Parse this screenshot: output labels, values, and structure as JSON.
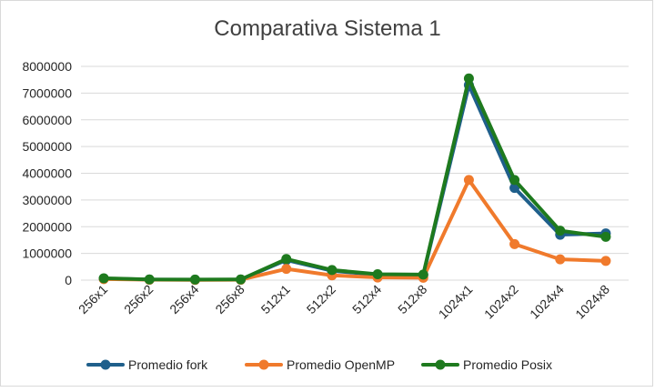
{
  "chart_data": {
    "type": "line",
    "title": "Comparativa Sistema 1",
    "xlabel": "",
    "ylabel": "",
    "ylim": [
      0,
      8000000
    ],
    "yticks": [
      "0",
      "1000000",
      "2000000",
      "3000000",
      "4000000",
      "5000000",
      "6000000",
      "7000000",
      "8000000"
    ],
    "grid": true,
    "legend": "bottom",
    "categories": [
      "256x1",
      "256x2",
      "256x4",
      "256x8",
      "512x1",
      "512x2",
      "512x4",
      "512x8",
      "1024x1",
      "1024x2",
      "1024x4",
      "1024x8"
    ],
    "series": [
      {
        "name": "Promedio fork",
        "color": "#1f5f8b",
        "values": [
          60000,
          20000,
          15000,
          20000,
          750000,
          350000,
          200000,
          190000,
          7300000,
          3450000,
          1700000,
          1750000
        ]
      },
      {
        "name": "Promedio OpenMP",
        "color": "#f07a2c",
        "values": [
          40000,
          15000,
          10000,
          15000,
          420000,
          180000,
          100000,
          90000,
          3750000,
          1350000,
          780000,
          720000
        ]
      },
      {
        "name": "Promedio Posix",
        "color": "#1e7a1e",
        "values": [
          70000,
          25000,
          20000,
          25000,
          790000,
          380000,
          220000,
          210000,
          7550000,
          3750000,
          1850000,
          1620000
        ]
      }
    ]
  }
}
